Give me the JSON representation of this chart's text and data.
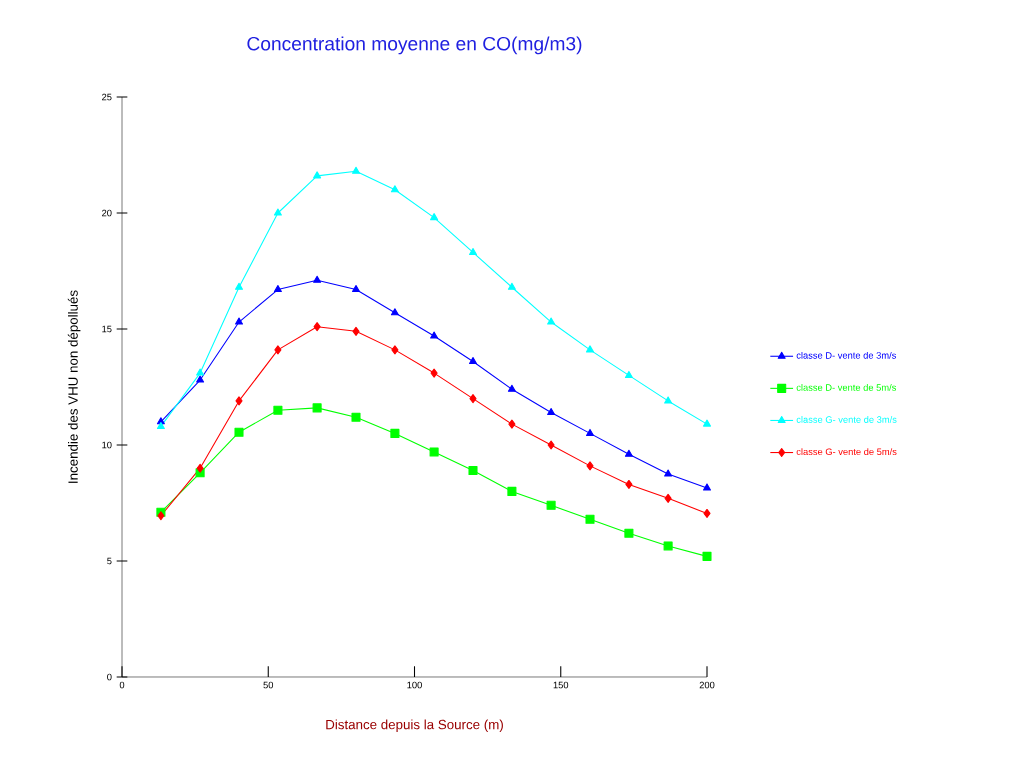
{
  "chart_data": {
    "type": "line",
    "title": "Concentration moyenne en CO(mg/m3)",
    "xlabel": "Distance depuis la Source (m)",
    "ylabel": "Incendie des VHU non dépollués",
    "x": [
      13.3,
      26.7,
      40,
      53.3,
      66.7,
      80,
      93.3,
      106.7,
      120,
      133.3,
      146.7,
      160,
      173.3,
      186.7,
      200
    ],
    "xlim": [
      0,
      200
    ],
    "xticks": [
      0,
      50,
      100,
      150,
      200
    ],
    "ylim": [
      0,
      25
    ],
    "yticks": [
      0,
      5,
      10,
      15,
      20,
      25
    ],
    "grid": false,
    "legend": "right",
    "line_style": "solid",
    "series": [
      {
        "name": "classe D- vente de 3m/s",
        "color": "#0000ff",
        "marker": "triangle",
        "values": [
          11.0,
          12.8,
          15.3,
          16.7,
          17.1,
          16.7,
          15.7,
          14.7,
          13.6,
          12.4,
          11.4,
          10.5,
          9.6,
          8.75,
          8.15
        ]
      },
      {
        "name": "classe D- vente de 5m/s",
        "color": "#00ff00",
        "marker": "square",
        "values": [
          7.1,
          8.8,
          10.55,
          11.5,
          11.6,
          11.2,
          10.5,
          9.7,
          8.9,
          8.0,
          7.4,
          6.8,
          6.2,
          5.65,
          5.2
        ]
      },
      {
        "name": "classe G- vente de 3m/s",
        "color": "#00ffff",
        "marker": "triangle",
        "values": [
          10.8,
          13.1,
          16.8,
          20.0,
          21.6,
          21.8,
          21.0,
          19.8,
          18.3,
          16.8,
          15.3,
          14.1,
          13.0,
          11.9,
          10.9
        ]
      },
      {
        "name": "classe G- vente de 5m/s",
        "color": "#ff0000",
        "marker": "diamond",
        "values": [
          6.95,
          9.0,
          11.9,
          14.1,
          15.1,
          14.9,
          14.1,
          13.1,
          12.0,
          10.9,
          10.0,
          9.1,
          8.3,
          7.7,
          7.05
        ]
      }
    ]
  }
}
